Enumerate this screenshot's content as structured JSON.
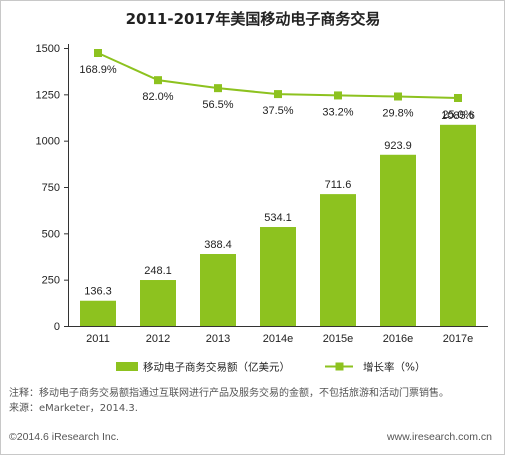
{
  "chart_data": {
    "title": "2011-2017年美国移动电子商务交易",
    "categories": [
      "2011",
      "2012",
      "2013",
      "2014e",
      "2015e",
      "2016e",
      "2017e"
    ],
    "type": "bar",
    "series": [
      {
        "name": "移动电子商务交易额（亿美元）",
        "type": "bar",
        "values": [
          136.3,
          248.1,
          388.4,
          534.1,
          711.6,
          923.9,
          1085.6
        ],
        "labels": [
          "136.3",
          "248.1",
          "388.4",
          "534.1",
          "711.6",
          "923.9",
          "1085.6"
        ],
        "color": "#8dc21f"
      },
      {
        "name": "增长率（%）",
        "type": "line",
        "values": [
          168.9,
          82.0,
          56.5,
          37.5,
          33.2,
          29.8,
          25.0
        ],
        "labels": [
          "168.9%",
          "82.0%",
          "56.5%",
          "37.5%",
          "33.2%",
          "29.8%",
          "25.0%"
        ],
        "color": "#8dc21f"
      }
    ],
    "y_axis": {
      "ticks": [
        "0",
        "250",
        "500",
        "750",
        "1000",
        "1250",
        "1500"
      ],
      "ylim": [
        0,
        1500
      ]
    },
    "grid": false,
    "legend_position": "bottom"
  },
  "notes": {
    "note": "注释：移动电子商务交易额指通过互联网进行产品及服务交易的金额，不包括旅游和活动门票销售。",
    "source": "来源：eMarketer，2014.3."
  },
  "footer": {
    "copyright": "©2014.6 iResearch Inc.",
    "website": "www.iresearch.com.cn"
  }
}
